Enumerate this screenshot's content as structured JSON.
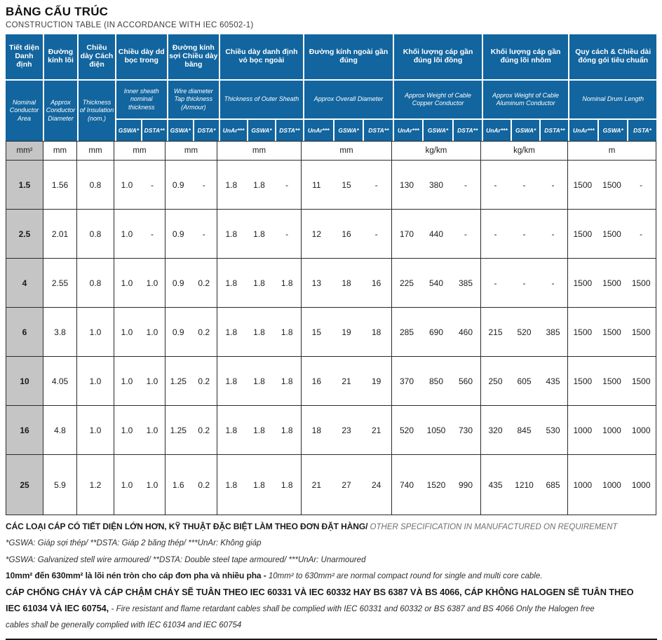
{
  "header": {
    "title_vn": "BẢNG CẤU TRÚC",
    "title_en": "CONSTRUCTION TABLE (IN ACCORDANCE WITH IEC 60502-1)"
  },
  "colors": {
    "header_blue": "#12659E",
    "gray_column": "#C5C5C5",
    "border": "#2B2B2B"
  },
  "table": {
    "groups": [
      {
        "vn": "Tiết diện Danh định",
        "en": "Nominal Conductor Area",
        "unit": "mm²",
        "subcols": []
      },
      {
        "vn": "Đường kính lõi",
        "en": "Approx Conductor Diameter",
        "unit": "mm",
        "subcols": []
      },
      {
        "vn": "Chiều dày Cách điện",
        "en": "Thickness of Insulation (nom.)",
        "unit": "mm",
        "subcols": []
      },
      {
        "vn": "Chiều dày dd bọc trong",
        "en": "Inner sheath nominal thickness",
        "unit": "mm",
        "subcols": [
          "GSWA*",
          "DSTA**"
        ]
      },
      {
        "vn": "Đường kính sợi Chiều dày băng",
        "en": "Wire diameter Tap thickness (Armour)",
        "unit": "mm",
        "subcols": [
          "GSWA*",
          "DSTA*"
        ]
      },
      {
        "vn": "Chiều dày danh định vỏ bọc ngoài",
        "en": "Thickness of Outer Sheath",
        "unit": "mm",
        "subcols": [
          "UnAr***",
          "GSWA*",
          "DSTA**"
        ]
      },
      {
        "vn": "Đường kính ngoài gần đúng",
        "en": "Approx Overall Diameter",
        "unit": "mm",
        "subcols": [
          "UnAr***",
          "GSWA*",
          "DSTA**"
        ]
      },
      {
        "vn": "Khối lượng cáp gần đúng lõi đồng",
        "en": "Approx Weight of Cable Copper Conductor",
        "unit": "kg/km",
        "subcols": [
          "UnAr***",
          "GSWA*",
          "DSTA**"
        ]
      },
      {
        "vn": "Khối lượng cáp gần đúng lõi nhôm",
        "en": "Approx Weight of Cable Aluminum Conductor",
        "unit": "kg/km",
        "subcols": [
          "UnAr***",
          "GSWA*",
          "DSTA**"
        ]
      },
      {
        "vn": "Quy cách & Chiều dài đóng gói tiêu chuẩn",
        "en": "Nominal Drum Length",
        "unit": "m",
        "subcols": [
          "UnAr***",
          "GSWA*",
          "DSTA*"
        ]
      }
    ],
    "rows": [
      {
        "area": "1.5",
        "values": [
          [
            "1.56"
          ],
          [
            "0.8"
          ],
          [
            "1.0",
            "-"
          ],
          [
            "0.9",
            "-"
          ],
          [
            "1.8",
            "1.8",
            "-"
          ],
          [
            "11",
            "15",
            "-"
          ],
          [
            "130",
            "380",
            "-"
          ],
          [
            "-",
            "-",
            "-"
          ],
          [
            "1500",
            "1500",
            "-"
          ]
        ]
      },
      {
        "area": "2.5",
        "values": [
          [
            "2.01"
          ],
          [
            "0.8"
          ],
          [
            "1.0",
            "-"
          ],
          [
            "0.9",
            "-"
          ],
          [
            "1.8",
            "1.8",
            "-"
          ],
          [
            "12",
            "16",
            "-"
          ],
          [
            "170",
            "440",
            "-"
          ],
          [
            "-",
            "-",
            "-"
          ],
          [
            "1500",
            "1500",
            "-"
          ]
        ]
      },
      {
        "area": "4",
        "values": [
          [
            "2.55"
          ],
          [
            "0.8"
          ],
          [
            "1.0",
            "1.0"
          ],
          [
            "0.9",
            "0.2"
          ],
          [
            "1.8",
            "1.8",
            "1.8"
          ],
          [
            "13",
            "18",
            "16"
          ],
          [
            "225",
            "540",
            "385"
          ],
          [
            "-",
            "-",
            "-"
          ],
          [
            "1500",
            "1500",
            "1500"
          ]
        ]
      },
      {
        "area": "6",
        "values": [
          [
            "3.8"
          ],
          [
            "1.0"
          ],
          [
            "1.0",
            "1.0"
          ],
          [
            "0.9",
            "0.2"
          ],
          [
            "1.8",
            "1.8",
            "1.8"
          ],
          [
            "15",
            "19",
            "18"
          ],
          [
            "285",
            "690",
            "460"
          ],
          [
            "215",
            "520",
            "385"
          ],
          [
            "1500",
            "1500",
            "1500"
          ]
        ]
      },
      {
        "area": "10",
        "values": [
          [
            "4.05"
          ],
          [
            "1.0"
          ],
          [
            "1.0",
            "1.0"
          ],
          [
            "1.25",
            "0.2"
          ],
          [
            "1.8",
            "1.8",
            "1.8"
          ],
          [
            "16",
            "21",
            "19"
          ],
          [
            "370",
            "850",
            "560"
          ],
          [
            "250",
            "605",
            "435"
          ],
          [
            "1500",
            "1500",
            "1500"
          ]
        ]
      },
      {
        "area": "16",
        "values": [
          [
            "4.8"
          ],
          [
            "1.0"
          ],
          [
            "1.0",
            "1.0"
          ],
          [
            "1.25",
            "0.2"
          ],
          [
            "1.8",
            "1.8",
            "1.8"
          ],
          [
            "18",
            "23",
            "21"
          ],
          [
            "520",
            "1050",
            "730"
          ],
          [
            "320",
            "845",
            "530"
          ],
          [
            "1000",
            "1000",
            "1000"
          ]
        ]
      },
      {
        "area": "25",
        "values": [
          [
            "5.9"
          ],
          [
            "1.2"
          ],
          [
            "1.0",
            "1.0"
          ],
          [
            "1.6",
            "0.2"
          ],
          [
            "1.8",
            "1.8",
            "1.8"
          ],
          [
            "21",
            "27",
            "24"
          ],
          [
            "740",
            "1520",
            "990"
          ],
          [
            "435",
            "1210",
            "685"
          ],
          [
            "1000",
            "1000",
            "1000"
          ]
        ]
      }
    ]
  },
  "footnotes": [
    [
      {
        "style": "bold",
        "text": "CÁC LOẠI CÁP CÓ TIẾT DIỆN LỚN HƠN, KỸ THUẬT ĐẶC BIỆT LÀM THEO ĐƠN ĐẶT HÀNG/ "
      },
      {
        "style": "italic-gray",
        "text": "OTHER SPECIFICATION IN MANUFACTURED ON REQUIREMENT"
      }
    ],
    [
      {
        "style": "italic",
        "text": "*GSWA: Giáp sợi thép/ **DSTA: Giáp 2 băng thép/ ***UnAr: Không giáp"
      }
    ],
    [
      {
        "style": "italic",
        "text": "*GSWA: Galvanized stell wire armoured/ **DSTA: Double steel tape armoured/ ***UnAr: Unarmoured"
      }
    ],
    [
      {
        "style": "bold",
        "text": "10mm² đến 630mm² là lõi nén tròn cho cáp đơn pha và nhiều pha - "
      },
      {
        "style": "italic",
        "text": "10mm² to 630mm² are normal compact round for single and multi core cable."
      }
    ],
    [
      {
        "style": "bold-large",
        "text": "CÁP CHỐNG CHÁY VÀ CÁP CHẬM CHÁY SẼ TUÂN THEO IEC 60331 VÀ IEC 60332 HAY BS 6387 VÀ BS 4066, CÁP KHÔNG HALOGEN SẼ TUÂN THEO"
      }
    ],
    [
      {
        "style": "bold-large",
        "text": "IEC 61034 VÀ IEC 60754, "
      },
      {
        "style": "italic",
        "text": " - Fire resistant and flame retardant cables shall be complied with IEC 60331 and 60332 or BS 6387 and BS 4066 Only the Halogen free"
      }
    ],
    [
      {
        "style": "italic",
        "text": "cables shall be generally complied with IEC 61034 and IEC 60754"
      }
    ]
  ]
}
